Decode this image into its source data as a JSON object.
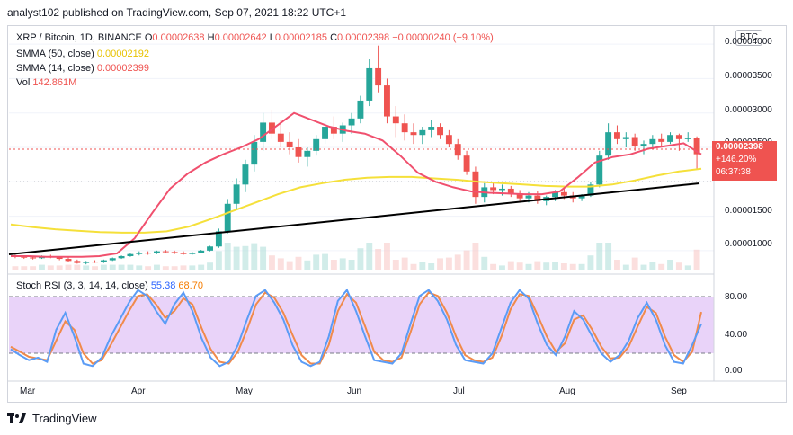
{
  "header": {
    "publisher_line": "analyst102 published on TradingView.com, Sep 07, 2021 18:22 UTC+1"
  },
  "main_legend": {
    "symbol": "XRP / Bitcoin, 1D, BINANCE",
    "o_label": "O",
    "o_value": "0.00002638",
    "h_label": "H",
    "h_value": "0.00002642",
    "l_label": "L",
    "l_value": "0.00002185",
    "c_label": "C",
    "c_value": "0.00002398",
    "change": "−0.00000240 (−9.10%)",
    "smma50_label": "SMMA (50, close)",
    "smma50_value": "0.00002192",
    "smma14_label": "SMMA (14, close)",
    "smma14_value": "0.00002399",
    "vol_label": "Vol",
    "vol_value": "142.861M"
  },
  "rsi_legend": {
    "label": "Stoch RSI (3, 3, 14, 14, close)",
    "k_value": "55.38",
    "d_value": "68.70"
  },
  "price_scale": {
    "currency_button": "BTC",
    "labels": [
      "0.00004000",
      "0.00003500",
      "0.00003000",
      "0.00002500",
      "0.00001500",
      "0.00001000"
    ],
    "last_price": "0.00002398",
    "last_change": "+146.20%",
    "countdown": "06:37:38"
  },
  "rsi_scale": {
    "labels": [
      "80.00",
      "40.00",
      "0.00"
    ]
  },
  "time_axis": {
    "labels": [
      "Mar",
      "Apr",
      "May",
      "Jun",
      "Jul",
      "Aug",
      "Sep"
    ]
  },
  "footer": {
    "brand": "TradingView"
  },
  "colors": {
    "up": "#26a69a",
    "down": "#ef5350",
    "smma50": "#f5e03a",
    "smma14": "#f0506e",
    "trendline": "#000000",
    "stoch_k": "#5b9cf6",
    "stoch_d": "#f08a4b",
    "rsi_band": "#e1c4f7"
  },
  "chart_data": {
    "type": "candlestick",
    "ylim": [
      7.5e-06,
      4.25e-05
    ],
    "price_series_ohlc": [
      [
        9.2e-06,
        9.4e-06,
        8.9e-06,
        9.1e-06
      ],
      [
        9.1e-06,
        9.3e-06,
        8.8e-06,
        9e-06
      ],
      [
        9e-06,
        9.2e-06,
        8.7e-06,
        8.9e-06
      ],
      [
        8.9e-06,
        9.3e-06,
        8.8e-06,
        9.2e-06
      ],
      [
        9.2e-06,
        9.4e-06,
        8.9e-06,
        9e-06
      ],
      [
        9e-06,
        9.1e-06,
        8.6e-06,
        8.8e-06
      ],
      [
        8.8e-06,
        9e-06,
        8.4e-06,
        8.5e-06
      ],
      [
        8.5e-06,
        8.7e-06,
        8.1e-06,
        8.2e-06
      ],
      [
        8.2e-06,
        8.5e-06,
        8e-06,
        8.4e-06
      ],
      [
        8.4e-06,
        8.6e-06,
        8.2e-06,
        8.3e-06
      ],
      [
        8.3e-06,
        8.7e-06,
        8.2e-06,
        8.6e-06
      ],
      [
        8.6e-06,
        9e-06,
        8.5e-06,
        8.9e-06
      ],
      [
        8.9e-06,
        9.3e-06,
        8.8e-06,
        9.2e-06
      ],
      [
        9.2e-06,
        9.6e-06,
        9.1e-06,
        9.5e-06
      ],
      [
        9.5e-06,
        9.9e-06,
        9.3e-06,
        9.7e-06
      ],
      [
        9.7e-06,
        9.9e-06,
        9.4e-06,
        9.6e-06
      ],
      [
        9.6e-06,
        1e-05,
        9.5e-06,
        9.9e-06
      ],
      [
        9.9e-06,
        1.01e-05,
        9.6e-06,
        9.8e-06
      ],
      [
        9.8e-06,
        1e-05,
        9.5e-06,
        9.7e-06
      ],
      [
        9.7e-06,
        9.9e-06,
        9.4e-06,
        9.5e-06
      ],
      [
        9.5e-06,
        9.8e-06,
        9.4e-06,
        9.7e-06
      ],
      [
        9.7e-06,
        1.01e-05,
        9.6e-06,
        1e-05
      ],
      [
        1e-05,
        1.07e-05,
        9.9e-06,
        1.06e-05
      ],
      [
        1.06e-05,
        1.32e-05,
        1.04e-05,
        1.28e-05
      ],
      [
        1.28e-05,
        1.75e-05,
        1.25e-05,
        1.68e-05
      ],
      [
        1.68e-05,
        2.05e-05,
        1.6e-05,
        1.96e-05
      ],
      [
        1.96e-05,
        2.32e-05,
        1.85e-05,
        2.25e-05
      ],
      [
        2.25e-05,
        2.68e-05,
        2.15e-05,
        2.58e-05
      ],
      [
        2.58e-05,
        3e-05,
        2.45e-05,
        2.86e-05
      ],
      [
        2.86e-05,
        3.05e-05,
        2.62e-05,
        2.7e-05
      ],
      [
        2.7e-05,
        2.9e-05,
        2.5e-05,
        2.58e-05
      ],
      [
        2.58e-05,
        2.72e-05,
        2.4e-05,
        2.5e-05
      ],
      [
        2.5e-05,
        2.62e-05,
        2.28e-05,
        2.36e-05
      ],
      [
        2.36e-05,
        2.5e-05,
        2.22e-05,
        2.45e-05
      ],
      [
        2.45e-05,
        2.68e-05,
        2.38e-05,
        2.62e-05
      ],
      [
        2.62e-05,
        2.88e-05,
        2.55e-05,
        2.8e-05
      ],
      [
        2.8e-05,
        2.95e-05,
        2.62e-05,
        2.7e-05
      ],
      [
        2.7e-05,
        2.86e-05,
        2.58e-05,
        2.82e-05
      ],
      [
        2.82e-05,
        3e-05,
        2.7e-05,
        2.92e-05
      ],
      [
        2.92e-05,
        3.25e-05,
        2.85e-05,
        3.18e-05
      ],
      [
        3.18e-05,
        3.78e-05,
        3.1e-05,
        3.65e-05
      ],
      [
        3.65e-05,
        3.98e-05,
        3.3e-05,
        3.4e-05
      ],
      [
        3.4e-05,
        3.5e-05,
        2.85e-05,
        2.95e-05
      ],
      [
        2.95e-05,
        3.1e-05,
        2.65e-05,
        2.85e-05
      ],
      [
        2.85e-05,
        2.98e-05,
        2.6e-05,
        2.72e-05
      ],
      [
        2.72e-05,
        2.85e-05,
        2.55e-05,
        2.68e-05
      ],
      [
        2.68e-05,
        2.8e-05,
        2.55e-05,
        2.75e-05
      ],
      [
        2.75e-05,
        2.9e-05,
        2.65e-05,
        2.8e-05
      ],
      [
        2.8e-05,
        2.85e-05,
        2.62e-05,
        2.68e-05
      ],
      [
        2.68e-05,
        2.75e-05,
        2.5e-05,
        2.55e-05
      ],
      [
        2.55e-05,
        2.62e-05,
        2.32e-05,
        2.38e-05
      ],
      [
        2.38e-05,
        2.45e-05,
        2.1e-05,
        2.15e-05
      ],
      [
        2.15e-05,
        2.22e-05,
        1.68e-05,
        1.78e-05
      ],
      [
        1.78e-05,
        1.98e-05,
        1.7e-05,
        1.92e-05
      ],
      [
        1.92e-05,
        2e-05,
        1.82e-05,
        1.88e-05
      ],
      [
        1.88e-05,
        1.96e-05,
        1.8e-05,
        1.9e-05
      ],
      [
        1.9e-05,
        1.94e-05,
        1.78e-05,
        1.82e-05
      ],
      [
        1.82e-05,
        1.88e-05,
        1.72e-05,
        1.76e-05
      ],
      [
        1.76e-05,
        1.85e-05,
        1.7e-05,
        1.8e-05
      ],
      [
        1.8e-05,
        1.86e-05,
        1.68e-05,
        1.72e-05
      ],
      [
        1.72e-05,
        1.8e-05,
        1.66e-05,
        1.78e-05
      ],
      [
        1.78e-05,
        1.88e-05,
        1.72e-05,
        1.85e-05
      ],
      [
        1.85e-05,
        1.92e-05,
        1.75e-05,
        1.8e-05
      ],
      [
        1.8e-05,
        1.85e-05,
        1.7e-05,
        1.76e-05
      ],
      [
        1.76e-05,
        1.82e-05,
        1.72e-05,
        1.8e-05
      ],
      [
        1.8e-05,
        2e-05,
        1.78e-05,
        1.96e-05
      ],
      [
        1.96e-05,
        2.45e-05,
        1.92e-05,
        2.38e-05
      ],
      [
        2.38e-05,
        2.85e-05,
        2.32e-05,
        2.72e-05
      ],
      [
        2.72e-05,
        2.82e-05,
        2.55e-05,
        2.62e-05
      ],
      [
        2.62e-05,
        2.72e-05,
        2.5e-05,
        2.65e-05
      ],
      [
        2.65e-05,
        2.7e-05,
        2.45e-05,
        2.52e-05
      ],
      [
        2.52e-05,
        2.6e-05,
        2.4e-05,
        2.55e-05
      ],
      [
        2.55e-05,
        2.68e-05,
        2.48e-05,
        2.62e-05
      ],
      [
        2.62e-05,
        2.7e-05,
        2.52e-05,
        2.58e-05
      ],
      [
        2.58e-05,
        2.72e-05,
        2.55e-05,
        2.68e-05
      ],
      [
        2.68e-05,
        2.7e-05,
        2.45e-05,
        2.62e-05
      ],
      [
        2.62e-05,
        2.72e-05,
        2.58e-05,
        2.64e-05
      ],
      [
        2.64e-05,
        2.66e-05,
        2.18e-05,
        2.4e-05
      ]
    ],
    "smma50": [
      1.38e-05,
      1.34e-05,
      1.31e-05,
      1.29e-05,
      1.27e-05,
      1.26e-05,
      1.26e-05,
      1.28e-05,
      1.35e-05,
      1.46e-05,
      1.58e-05,
      1.7e-05,
      1.82e-05,
      1.92e-05,
      1.98e-05,
      2.03e-05,
      2.06e-05,
      2.07e-05,
      2.07e-05,
      2.05e-05,
      2.03e-05,
      2e-05,
      1.98e-05,
      1.96e-05,
      1.94e-05,
      1.93e-05,
      1.93e-05,
      1.96e-05,
      2.02e-05,
      2.09e-05,
      2.15e-05,
      2.19e-05
    ],
    "smma14": [
      9.2e-06,
      9.2e-06,
      9.1e-06,
      9.1e-06,
      9.1e-06,
      9.2e-06,
      9.6e-06,
      1.18e-05,
      1.55e-05,
      1.9e-05,
      2.12e-05,
      2.28e-05,
      2.4e-05,
      2.5e-05,
      2.62e-05,
      2.81e-05,
      3e-05,
      2.9e-05,
      2.8e-05,
      2.74e-05,
      2.7e-05,
      2.6e-05,
      2.38e-05,
      2.13e-05,
      2e-05,
      1.92e-05,
      1.86e-05,
      1.84e-05,
      1.83e-05,
      1.82e-05,
      1.82e-05,
      1.86e-05,
      2.06e-05,
      2.28e-05,
      2.36e-05,
      2.4e-05,
      2.48e-05,
      2.52e-05,
      2.56e-05,
      2.4e-05
    ],
    "stoch_rsi_ylim": [
      0,
      100
    ],
    "stoch_k": [
      25,
      18,
      12,
      15,
      10,
      48,
      68,
      40,
      8,
      5,
      15,
      40,
      60,
      80,
      95,
      88,
      70,
      55,
      78,
      92,
      70,
      38,
      15,
      5,
      10,
      30,
      60,
      88,
      95,
      80,
      60,
      30,
      10,
      5,
      10,
      40,
      82,
      95,
      70,
      40,
      12,
      10,
      8,
      20,
      55,
      88,
      95,
      82,
      60,
      30,
      12,
      10,
      8,
      20,
      50,
      80,
      95,
      85,
      55,
      30,
      18,
      40,
      70,
      60,
      40,
      20,
      10,
      18,
      35,
      62,
      80,
      60,
      30,
      10,
      8,
      30,
      55
    ],
    "stoch_d": [
      28,
      22,
      16,
      14,
      12,
      35,
      58,
      48,
      20,
      8,
      12,
      30,
      50,
      70,
      88,
      90,
      78,
      62,
      70,
      85,
      78,
      50,
      25,
      10,
      8,
      22,
      48,
      78,
      92,
      86,
      68,
      42,
      18,
      8,
      8,
      30,
      70,
      90,
      80,
      52,
      22,
      12,
      10,
      15,
      45,
      78,
      92,
      88,
      68,
      40,
      18,
      12,
      10,
      15,
      40,
      72,
      90,
      88,
      65,
      40,
      22,
      32,
      60,
      65,
      48,
      28,
      14,
      15,
      28,
      52,
      75,
      68,
      40,
      18,
      10,
      22,
      69
    ]
  }
}
